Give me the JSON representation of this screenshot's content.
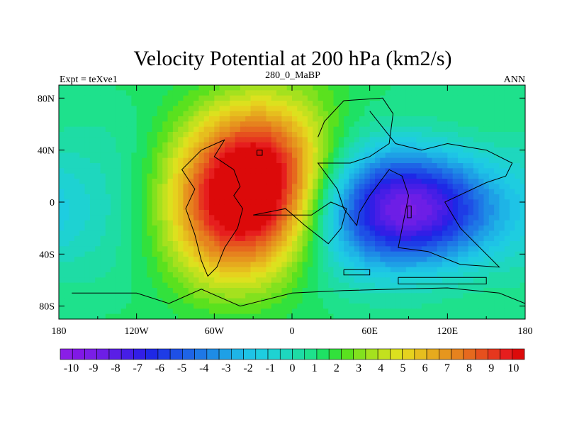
{
  "chart_data": {
    "type": "heatmap",
    "title": "Velocity Potential at 200 hPa (km2/s)",
    "left_label": "Expt = teXve1",
    "center_label": "280_0_MaBP",
    "right_label": "ANN",
    "x_range": [
      -180,
      180
    ],
    "y_range": [
      -90,
      90
    ],
    "x_ticks": [
      {
        "value": -180,
        "label": "180"
      },
      {
        "value": -120,
        "label": "120W"
      },
      {
        "value": -60,
        "label": "60W"
      },
      {
        "value": 0,
        "label": "0"
      },
      {
        "value": 60,
        "label": "60E"
      },
      {
        "value": 120,
        "label": "120E"
      },
      {
        "value": 180,
        "label": "180"
      }
    ],
    "y_ticks": [
      {
        "value": 80,
        "label": "80N"
      },
      {
        "value": 40,
        "label": "40N"
      },
      {
        "value": 0,
        "label": "0"
      },
      {
        "value": -40,
        "label": "40S"
      },
      {
        "value": -80,
        "label": "80S"
      }
    ],
    "colorbar": {
      "min": -10.5,
      "max": 10.5,
      "step": 0.5,
      "labels": [
        "-10",
        "-9",
        "-8",
        "-7",
        "-6",
        "-5",
        "-4",
        "-3",
        "-2",
        "-1",
        "0",
        "1",
        "2",
        "3",
        "4",
        "5",
        "6",
        "7",
        "8",
        "9",
        "10"
      ],
      "colors": [
        "#8a1ee6",
        "#8118e6",
        "#7a1ee6",
        "#6d1ee6",
        "#5a1ee6",
        "#461ee6",
        "#321ee6",
        "#1e28e6",
        "#1e3ce6",
        "#1e50e6",
        "#1e64e6",
        "#1e78e6",
        "#1e8ce6",
        "#1ea0e6",
        "#1eb4e6",
        "#1ec3e6",
        "#1ecde0",
        "#1ed2d2",
        "#1ed7be",
        "#1edca5",
        "#1ee18c",
        "#1ee164",
        "#32e13c",
        "#5ae11e",
        "#82e11e",
        "#a5e11e",
        "#c3e11e",
        "#dce11e",
        "#e6d21e",
        "#e6be1e",
        "#e6aa1e",
        "#e6961e",
        "#e6821e",
        "#e6691e",
        "#e6501e",
        "#e6371e",
        "#e61e1e",
        "#dc0a0a"
      ]
    },
    "features": [
      {
        "name": "positive-center",
        "lon": -30,
        "lat": 15,
        "peak": 10.3
      },
      {
        "name": "negative-center",
        "lon": 95,
        "lat": -5,
        "peak": -9.6
      }
    ]
  }
}
